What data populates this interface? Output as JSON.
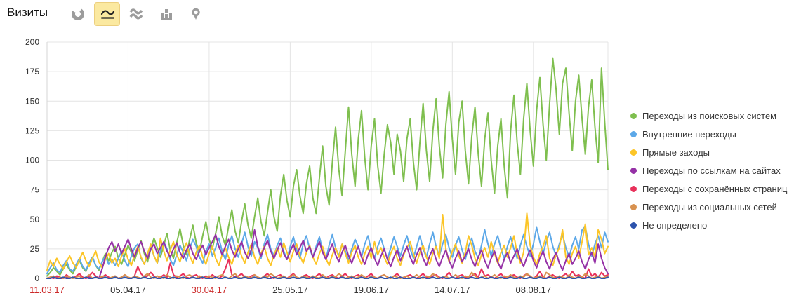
{
  "header": {
    "title": "Визиты",
    "selected_tool": "line-chart",
    "tools": [
      {
        "id": "pie-chart",
        "icon": "pie-chart-icon"
      },
      {
        "id": "line-chart",
        "icon": "line-chart-icon"
      },
      {
        "id": "stacked-area",
        "icon": "stacked-area-icon"
      },
      {
        "id": "column-chart",
        "icon": "column-chart-icon"
      },
      {
        "id": "map-pin",
        "icon": "map-pin-icon"
      }
    ]
  },
  "colors": {
    "grid": "#e4e4e4",
    "axis": "#d6d6d6",
    "tick_text": "#333333",
    "holiday_tick": "#cc2929",
    "icon_gray": "#9c9c9c",
    "icon_dark": "#222222"
  },
  "chart_data": {
    "type": "line",
    "title": "Визиты",
    "xlabel": "",
    "ylabel": "",
    "ylim": [
      0,
      200
    ],
    "y_ticks": [
      0,
      25,
      50,
      75,
      100,
      125,
      150,
      175,
      200
    ],
    "grid": true,
    "legend_position": "right",
    "x_unit": "day",
    "x_start": "11.03.17",
    "x_end": "31.08.17",
    "x_ticks": [
      {
        "day": 0,
        "label": "11.03.17",
        "holiday": true
      },
      {
        "day": 25,
        "label": "05.04.17",
        "holiday": false
      },
      {
        "day": 50,
        "label": "30.04.17",
        "holiday": true
      },
      {
        "day": 75,
        "label": "25.05.17",
        "holiday": false
      },
      {
        "day": 100,
        "label": "19.06.17",
        "holiday": false
      },
      {
        "day": 125,
        "label": "14.07.17",
        "holiday": false
      },
      {
        "day": 150,
        "label": "08.08.17",
        "holiday": false
      }
    ],
    "series": [
      {
        "name": "Переходы из поисковых систем",
        "color": "#7fbf4f",
        "values": [
          2,
          5,
          9,
          6,
          3,
          8,
          12,
          7,
          4,
          10,
          15,
          9,
          6,
          13,
          18,
          11,
          7,
          14,
          21,
          15,
          22,
          27,
          17,
          12,
          20,
          28,
          22,
          15,
          24,
          32,
          21,
          14,
          25,
          34,
          26,
          18,
          28,
          38,
          24,
          17,
          30,
          42,
          28,
          20,
          33,
          45,
          30,
          22,
          36,
          48,
          33,
          25,
          38,
          52,
          36,
          28,
          44,
          58,
          40,
          30,
          48,
          63,
          45,
          34,
          52,
          68,
          48,
          36,
          56,
          75,
          52,
          40,
          70,
          88,
          66,
          52,
          78,
          92,
          70,
          55,
          80,
          95,
          68,
          55,
          85,
          112,
          78,
          62,
          98,
          128,
          92,
          70,
          108,
          145,
          105,
          78,
          118,
          142,
          102,
          75,
          112,
          135,
          95,
          72,
          105,
          130,
          115,
          88,
          122,
          108,
          82,
          118,
          135,
          98,
          75,
          115,
          148,
          108,
          82,
          125,
          152,
          112,
          85,
          130,
          158,
          118,
          88,
          132,
          150,
          108,
          80,
          120,
          145,
          105,
          78,
          118,
          140,
          100,
          72,
          112,
          135,
          95,
          68,
          125,
          155,
          115,
          88,
          135,
          165,
          125,
          95,
          142,
          170,
          130,
          100,
          148,
          186,
          160,
          122,
          165,
          178,
          140,
          108,
          150,
          172,
          135,
          105,
          145,
          168,
          128,
          98,
          178,
          132,
          92
        ]
      },
      {
        "name": "Внутренние переходы",
        "color": "#5ca8e8",
        "values": [
          4,
          9,
          13,
          7,
          5,
          11,
          15,
          8,
          6,
          12,
          17,
          10,
          7,
          13,
          18,
          11,
          8,
          14,
          19,
          12,
          16,
          11,
          17,
          23,
          15,
          10,
          19,
          26,
          29,
          17,
          12,
          21,
          27,
          19,
          13,
          23,
          31,
          25,
          16,
          11,
          20,
          28,
          22,
          15,
          25,
          33,
          27,
          18,
          13,
          23,
          29,
          19,
          26,
          34,
          23,
          16,
          28,
          36,
          25,
          18,
          29,
          39,
          27,
          19,
          31,
          26,
          17,
          29,
          37,
          25,
          19,
          28,
          34,
          23,
          16,
          27,
          35,
          24,
          17,
          29,
          36,
          25,
          18,
          27,
          35,
          24,
          16,
          28,
          37,
          26,
          19,
          29,
          23,
          15,
          25,
          33,
          27,
          18,
          29,
          36,
          24,
          17,
          27,
          34,
          25,
          16,
          26,
          35,
          27,
          19,
          28,
          36,
          25,
          17,
          27,
          36,
          25,
          18,
          29,
          39,
          27,
          19,
          29,
          37,
          26,
          18,
          28,
          35,
          24,
          16,
          27,
          34,
          23,
          17,
          28,
          41,
          29,
          19,
          29,
          36,
          25,
          17,
          27,
          35,
          25,
          17,
          28,
          37,
          27,
          19,
          29,
          43,
          31,
          21,
          31,
          39,
          27,
          19,
          29,
          37,
          26,
          18,
          28,
          35,
          25,
          41,
          44,
          29,
          19,
          29,
          36,
          26,
          39,
          31
        ]
      },
      {
        "name": "Прямые заходы",
        "color": "#fcc527",
        "values": [
          7,
          15,
          10,
          17,
          12,
          8,
          14,
          19,
          13,
          9,
          16,
          22,
          15,
          10,
          17,
          23,
          14,
          9,
          16,
          21,
          13,
          17,
          10,
          19,
          25,
          16,
          11,
          20,
          27,
          18,
          12,
          21,
          29,
          19,
          13,
          34,
          23,
          15,
          24,
          31,
          20,
          14,
          23,
          30,
          19,
          13,
          22,
          28,
          18,
          12,
          21,
          27,
          17,
          11,
          20,
          26,
          18,
          12,
          21,
          28,
          19,
          13,
          22,
          29,
          18,
          12,
          21,
          27,
          17,
          11,
          20,
          26,
          18,
          30,
          22,
          14,
          23,
          29,
          19,
          13,
          22,
          28,
          18,
          12,
          21,
          27,
          17,
          11,
          20,
          26,
          18,
          29,
          21,
          13,
          22,
          28,
          18,
          12,
          21,
          27,
          17,
          31,
          20,
          26,
          18,
          12,
          21,
          27,
          17,
          11,
          20,
          26,
          31,
          21,
          13,
          22,
          28,
          18,
          12,
          21,
          27,
          17,
          54,
          25,
          14,
          23,
          29,
          19,
          13,
          22,
          36,
          28,
          17,
          11,
          20,
          26,
          18,
          31,
          21,
          13,
          22,
          28,
          18,
          26,
          36,
          21,
          13,
          22,
          55,
          28,
          18,
          12,
          21,
          27,
          36,
          17,
          11,
          20,
          26,
          41,
          18,
          12,
          21,
          27,
          17,
          31,
          46,
          20,
          26,
          18,
          41,
          33,
          21,
          27
        ]
      },
      {
        "name": "Переходы по ссылкам на сайтах",
        "color": "#9531a6",
        "values": [
          0,
          1,
          0,
          1,
          0,
          0,
          1,
          0,
          1,
          0,
          0,
          1,
          0,
          1,
          0,
          1,
          0,
          8,
          18,
          26,
          31,
          23,
          29,
          21,
          27,
          33,
          25,
          18,
          26,
          31,
          23,
          17,
          25,
          29,
          21,
          26,
          31,
          23,
          18,
          25,
          30,
          22,
          17,
          24,
          29,
          21,
          16,
          23,
          28,
          20,
          26,
          31,
          37,
          27,
          20,
          27,
          33,
          24,
          18,
          25,
          31,
          22,
          17,
          24,
          41,
          27,
          19,
          26,
          32,
          23,
          17,
          24,
          30,
          21,
          16,
          23,
          29,
          20,
          26,
          32,
          23,
          27,
          18,
          25,
          31,
          22,
          16,
          23,
          29,
          20,
          14,
          22,
          28,
          19,
          13,
          21,
          27,
          18,
          12,
          20,
          26,
          17,
          11,
          19,
          25,
          16,
          10,
          18,
          24,
          15,
          21,
          27,
          18,
          12,
          20,
          26,
          17,
          11,
          19,
          25,
          16,
          10,
          18,
          24,
          15,
          9,
          17,
          23,
          14,
          19,
          25,
          16,
          10,
          18,
          24,
          15,
          9,
          17,
          23,
          14,
          8,
          16,
          22,
          13,
          19,
          25,
          16,
          10,
          18,
          24,
          15,
          9,
          17,
          23,
          14,
          8,
          16,
          22,
          13,
          7,
          15,
          21,
          12,
          17,
          23,
          14,
          8,
          16,
          22,
          13,
          29,
          17,
          9,
          4
        ]
      },
      {
        "name": "Переходы с сохранённых страниц",
        "color": "#e8315b",
        "values": [
          0,
          1,
          0,
          2,
          1,
          0,
          3,
          1,
          0,
          2,
          4,
          1,
          0,
          2,
          5,
          2,
          0,
          1,
          3,
          1,
          0,
          2,
          0,
          1,
          3,
          1,
          0,
          2,
          10,
          4,
          1,
          2,
          5,
          2,
          0,
          1,
          3,
          1,
          13,
          3,
          1,
          2,
          4,
          1,
          0,
          2,
          3,
          1,
          0,
          2,
          1,
          3,
          1,
          0,
          2,
          8,
          16,
          3,
          1,
          2,
          4,
          1,
          0,
          2,
          3,
          1,
          0,
          2,
          4,
          1,
          0,
          2,
          3,
          1,
          0,
          2,
          4,
          1,
          0,
          2,
          3,
          1,
          0,
          2,
          4,
          1,
          0,
          2,
          3,
          1,
          0,
          2,
          4,
          1,
          0,
          2,
          3,
          1,
          0,
          2,
          4,
          1,
          0,
          2,
          3,
          1,
          0,
          2,
          4,
          1,
          0,
          2,
          3,
          1,
          0,
          2,
          4,
          1,
          0,
          2,
          3,
          1,
          0,
          2,
          5,
          1,
          0,
          2,
          3,
          1,
          0,
          2,
          4,
          1,
          8,
          2,
          3,
          1,
          0,
          2,
          4,
          1,
          0,
          2,
          3,
          1,
          0,
          2,
          4,
          1,
          0,
          2,
          6,
          1,
          0,
          2,
          3,
          1,
          0,
          2,
          4,
          1,
          6,
          2,
          3,
          1,
          0,
          8,
          2,
          4,
          1,
          5,
          2,
          3
        ]
      },
      {
        "name": "Переходы из социальных сетей",
        "color": "#d89250",
        "values": [
          0,
          1,
          2,
          0,
          1,
          0,
          2,
          1,
          0,
          1,
          2,
          0,
          1,
          3,
          0,
          1,
          0,
          2,
          1,
          0,
          1,
          2,
          0,
          1,
          3,
          1,
          0,
          2,
          1,
          0,
          2,
          4,
          1,
          0,
          2,
          1,
          0,
          3,
          1,
          0,
          2,
          1,
          0,
          2,
          3,
          1,
          0,
          2,
          1,
          0,
          2,
          1,
          0,
          2,
          3,
          1,
          0,
          2,
          4,
          1,
          0,
          2,
          1,
          0,
          3,
          1,
          0,
          2,
          1,
          4,
          2,
          0,
          1,
          2,
          0,
          1,
          3,
          1,
          0,
          2,
          1,
          0,
          2,
          1,
          0,
          3,
          1,
          0,
          2,
          1,
          4,
          2,
          0,
          1,
          2,
          0,
          1,
          3,
          1,
          0,
          2,
          1,
          0,
          2,
          3,
          1,
          0,
          2,
          1,
          0,
          1,
          2,
          0,
          1,
          3,
          1,
          0,
          2,
          1,
          4,
          2,
          0,
          1,
          2,
          0,
          1,
          3,
          1,
          0,
          2,
          1,
          5,
          2,
          0,
          1,
          2,
          0,
          1,
          3,
          1,
          0,
          2,
          1,
          3,
          1,
          0,
          2,
          1,
          4,
          2,
          0,
          1,
          2,
          0,
          5,
          3,
          1,
          0,
          2,
          1,
          0,
          3,
          1,
          0,
          2,
          1,
          4,
          2,
          0,
          1,
          2,
          0,
          1,
          2
        ]
      },
      {
        "name": "Не определено",
        "color": "#2d53ac",
        "values": [
          0,
          0,
          1,
          0,
          0,
          1,
          0,
          0,
          1,
          0,
          0,
          0,
          1,
          0,
          0,
          1,
          0,
          0,
          1,
          0,
          0,
          1,
          0,
          0,
          1,
          0,
          0,
          1,
          0,
          0,
          1,
          0,
          0,
          1,
          0,
          0,
          1,
          0,
          0,
          1,
          0,
          0,
          1,
          0,
          0,
          1,
          0,
          0,
          1,
          0,
          0,
          0,
          1,
          0,
          0,
          1,
          0,
          0,
          1,
          0,
          0,
          1,
          0,
          0,
          1,
          0,
          0,
          1,
          0,
          0,
          1,
          0,
          0,
          1,
          0,
          0,
          1,
          0,
          0,
          1,
          0,
          0,
          1,
          0,
          0,
          1,
          0,
          0,
          1,
          0,
          0,
          1,
          0,
          0,
          1,
          0,
          0,
          1,
          0,
          0,
          1,
          0,
          0,
          1,
          0,
          0,
          1,
          0,
          0,
          1,
          0,
          0,
          0,
          1,
          0,
          0,
          1,
          0,
          0,
          1,
          0,
          0,
          1,
          0,
          0,
          1,
          0,
          0,
          1,
          0,
          0,
          1,
          0,
          0,
          1,
          0,
          0,
          1,
          0,
          0,
          1,
          0,
          0,
          1,
          0,
          0,
          1,
          0,
          0,
          1,
          0,
          0,
          1,
          0,
          0,
          1,
          0,
          0,
          1,
          0,
          0,
          1,
          0,
          0,
          1,
          0,
          0,
          1,
          0,
          0,
          1,
          0,
          0,
          1
        ]
      }
    ]
  }
}
